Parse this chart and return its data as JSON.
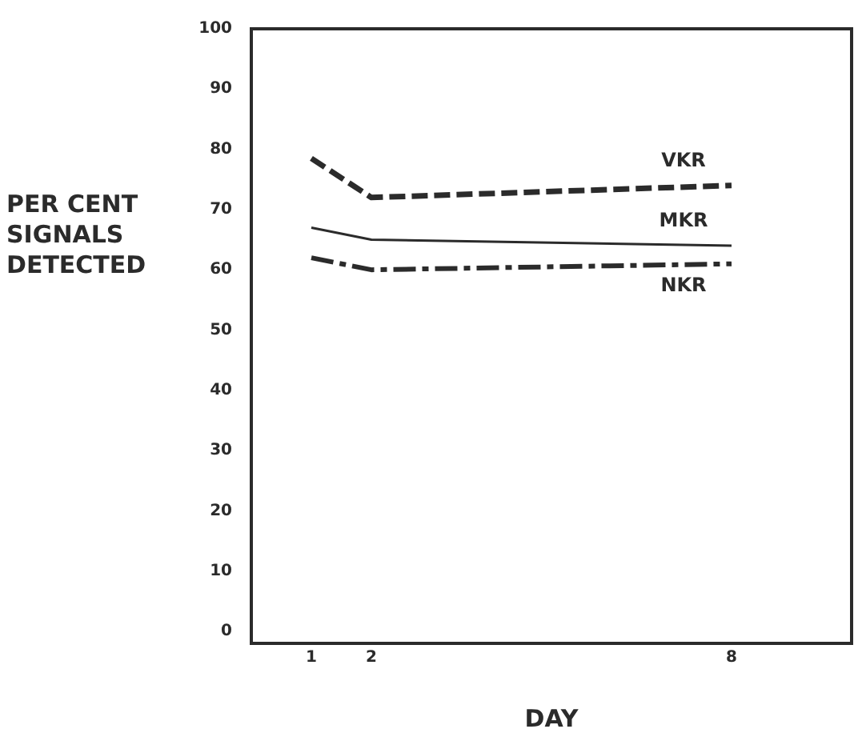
{
  "chart_data": {
    "type": "line",
    "xlabel": "DAY",
    "ylabel": "PER CENT SIGNALS DETECTED",
    "xlim": [
      0,
      10
    ],
    "xticks": [
      1,
      2,
      8
    ],
    "ylim": [
      -2,
      100
    ],
    "yticks": [
      0,
      10,
      20,
      30,
      40,
      50,
      60,
      70,
      80,
      90,
      100
    ],
    "grid": false,
    "legend": false,
    "marker": "none",
    "series": [
      {
        "name": "VKR",
        "color": "#2b2b2b",
        "x": [
          1,
          2,
          8
        ],
        "values": [
          78.5,
          72,
          74
        ],
        "line_style": "dashed"
      },
      {
        "name": "MKR",
        "color": "#2b2b2b",
        "x": [
          1,
          2,
          8
        ],
        "values": [
          67,
          65,
          64
        ],
        "line_style": "solid"
      },
      {
        "name": "NKR",
        "color": "#2b2b2b",
        "x": [
          1,
          2,
          8
        ],
        "values": [
          62,
          60,
          61
        ],
        "line_style": "dotted"
      }
    ]
  }
}
